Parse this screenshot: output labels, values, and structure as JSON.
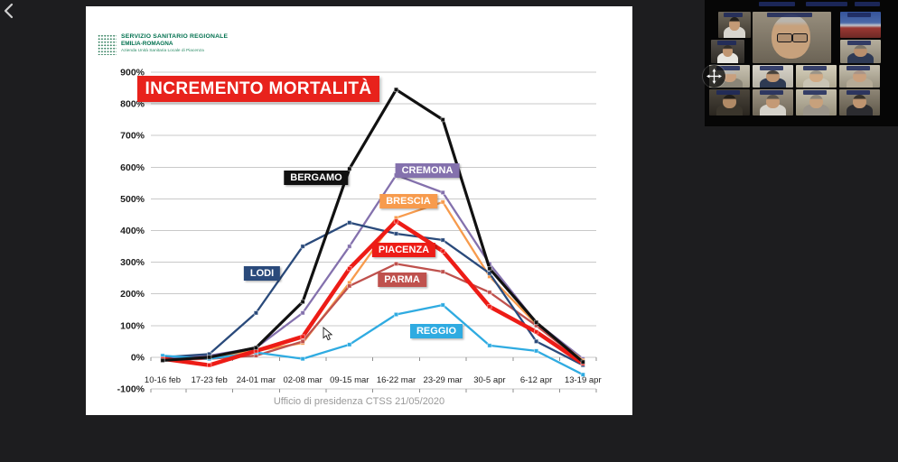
{
  "app": {
    "back_control": "back-chevron",
    "participant_grid": {
      "visible_tiles": 13,
      "names_legible": false
    }
  },
  "slide": {
    "logo": {
      "line1": "SERVIZIO SANITARIO REGIONALE",
      "line2": "EMILIA-ROMAGNA",
      "line3": "Azienda Unità Sanitaria Locale di Piacenza"
    },
    "title": "INCREMENTO MORTALITÀ",
    "footer": "Ufficio di presidenza CTSS 21/05/2020"
  },
  "chart_data": {
    "type": "line",
    "title": "INCREMENTO MORTALITÀ",
    "xlabel": "",
    "ylabel": "",
    "ylim": [
      -100,
      900
    ],
    "ytick_step": 100,
    "yticks": [
      "900%",
      "800%",
      "700%",
      "600%",
      "500%",
      "400%",
      "300%",
      "200%",
      "100%",
      "0%",
      "-100%"
    ],
    "grid": true,
    "legend_position": "labels-on-chart",
    "categories": [
      "10-16 feb",
      "17-23 feb",
      "24-01 mar",
      "02-08 mar",
      "09-15 mar",
      "16-22 mar",
      "23-29 mar",
      "30-5 apr",
      "6-12 apr",
      "13-19 apr"
    ],
    "series": [
      {
        "name": "BERGAMO",
        "color": "#111111",
        "values": [
          -10,
          0,
          30,
          175,
          595,
          845,
          750,
          280,
          110,
          -15
        ]
      },
      {
        "name": "CREMONA",
        "color": "#8471ad",
        "values": [
          -5,
          5,
          30,
          140,
          350,
          575,
          520,
          295,
          110,
          -5
        ]
      },
      {
        "name": "BRESCIA",
        "color": "#f79b4d",
        "values": [
          -10,
          0,
          20,
          45,
          235,
          440,
          490,
          255,
          105,
          -10
        ]
      },
      {
        "name": "PIACENZA",
        "color": "#ed1c16",
        "values": [
          -5,
          -25,
          20,
          65,
          280,
          430,
          335,
          160,
          80,
          -20
        ]
      },
      {
        "name": "PARMA",
        "color": "#bf514d",
        "values": [
          -10,
          -5,
          5,
          50,
          225,
          295,
          270,
          205,
          100,
          -15
        ]
      },
      {
        "name": "LODI",
        "color": "#2a4a7b",
        "values": [
          0,
          10,
          140,
          350,
          425,
          390,
          370,
          265,
          50,
          -25
        ]
      },
      {
        "name": "REGGIO",
        "color": "#2fabe1",
        "values": [
          5,
          -5,
          15,
          -5,
          40,
          135,
          165,
          37,
          20,
          -55
        ]
      }
    ]
  },
  "colors": {
    "slide_bg": "#ffffff",
    "screen_bg": "#1d1d1f",
    "title_bg": "#e8221c",
    "gridline": "#c9c9c9",
    "logo_green": "#00704e",
    "footer_gray": "#999999"
  }
}
